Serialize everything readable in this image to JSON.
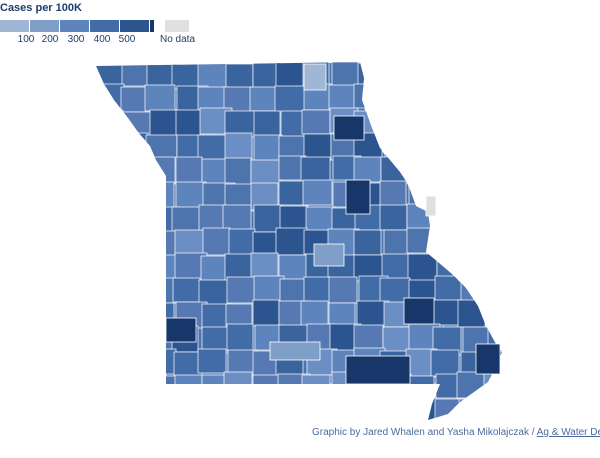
{
  "legend": {
    "title": "Cases per 100K",
    "ticks": [
      "100",
      "200",
      "300",
      "400",
      "500"
    ],
    "colors": [
      "#9fb6d4",
      "#7f9fc8",
      "#5e84bd",
      "#426ca8",
      "#2c5590",
      "#17376a"
    ],
    "no_data_label": "No data",
    "no_data_color": "#e0e0e0"
  },
  "credit": {
    "text": "Graphic by Jared Whalen and Yasha Mikolajczak / ",
    "link": "Ag & Water Desk"
  }
}
